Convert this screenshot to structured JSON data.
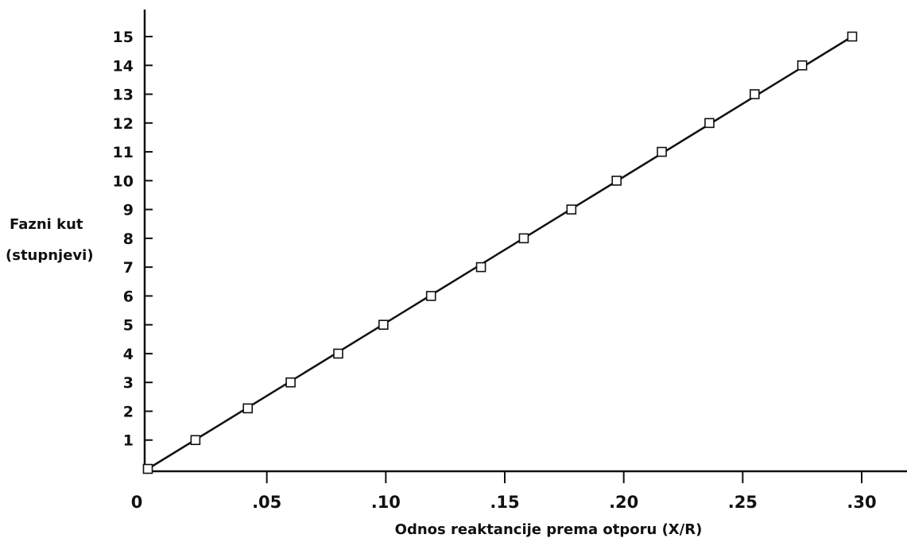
{
  "chart_data": {
    "type": "line",
    "xlabel": "Odnos reaktancije prema otporu (X/R)",
    "ylabel": [
      "Fazni kut",
      "(stupnjevi)"
    ],
    "xlim": [
      0,
      0.3
    ],
    "ylim": [
      0,
      15
    ],
    "x_ticks": [
      {
        "value": 0,
        "label": "0"
      },
      {
        "value": 0.05,
        "label": ".05"
      },
      {
        "value": 0.1,
        "label": ".10"
      },
      {
        "value": 0.15,
        "label": ".15"
      },
      {
        "value": 0.2,
        "label": ".20"
      },
      {
        "value": 0.25,
        "label": ".25"
      },
      {
        "value": 0.3,
        "label": ".30"
      }
    ],
    "y_ticks": [
      {
        "value": 1,
        "label": "1"
      },
      {
        "value": 2,
        "label": "2"
      },
      {
        "value": 3,
        "label": "3"
      },
      {
        "value": 4,
        "label": "4"
      },
      {
        "value": 5,
        "label": "5"
      },
      {
        "value": 6,
        "label": "6"
      },
      {
        "value": 7,
        "label": "7"
      },
      {
        "value": 8,
        "label": "8"
      },
      {
        "value": 9,
        "label": "9"
      },
      {
        "value": 10,
        "label": "10"
      },
      {
        "value": 11,
        "label": "11"
      },
      {
        "value": 12,
        "label": "12"
      },
      {
        "value": 13,
        "label": "13"
      },
      {
        "value": 14,
        "label": "14"
      },
      {
        "value": 15,
        "label": "15"
      }
    ],
    "grid": false,
    "series": [
      {
        "marker": "open-square",
        "line": "straight",
        "points": [
          {
            "x": 0.0,
            "y": 0
          },
          {
            "x": 0.02,
            "y": 1
          },
          {
            "x": 0.042,
            "y": 2.1
          },
          {
            "x": 0.06,
            "y": 3
          },
          {
            "x": 0.08,
            "y": 4
          },
          {
            "x": 0.099,
            "y": 5
          },
          {
            "x": 0.119,
            "y": 6
          },
          {
            "x": 0.14,
            "y": 7
          },
          {
            "x": 0.158,
            "y": 8
          },
          {
            "x": 0.178,
            "y": 9
          },
          {
            "x": 0.197,
            "y": 10
          },
          {
            "x": 0.216,
            "y": 11
          },
          {
            "x": 0.236,
            "y": 12
          },
          {
            "x": 0.255,
            "y": 13
          },
          {
            "x": 0.275,
            "y": 14
          },
          {
            "x": 0.296,
            "y": 15
          }
        ]
      }
    ]
  }
}
